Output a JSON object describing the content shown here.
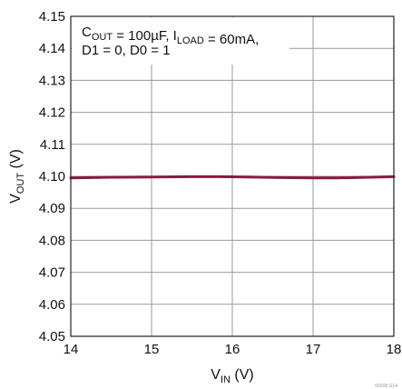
{
  "chart_data": {
    "type": "line",
    "xlabel": {
      "main": "V",
      "sub": "IN",
      "unit": " (V)"
    },
    "ylabel": {
      "main": "V",
      "sub": "OUT",
      "unit": " (V)"
    },
    "xlim": [
      14,
      18
    ],
    "ylim": [
      4.05,
      4.15
    ],
    "x_ticks": [
      "14",
      "15",
      "16",
      "17",
      "18"
    ],
    "y_ticks": [
      "4.05",
      "4.06",
      "4.07",
      "4.08",
      "4.09",
      "4.10",
      "4.11",
      "4.12",
      "4.13",
      "4.14",
      "4.15"
    ],
    "grid": true,
    "annotation": {
      "line1": [
        {
          "t": "C"
        },
        {
          "t": "OUT",
          "sub": true
        },
        {
          "t": " = 100µF, I"
        },
        {
          "t": "LOAD",
          "sub": true
        },
        {
          "t": " = 60mA,"
        }
      ],
      "line2": "D1 = 0, D0 = 1"
    },
    "series": [
      {
        "color": "#8b1a3a",
        "x": [
          14.0,
          14.5,
          15.0,
          15.5,
          15.8,
          16.2,
          16.6,
          17.0,
          17.3,
          17.7,
          18.0
        ],
        "y": [
          4.0995,
          4.0997,
          4.0998,
          4.0999,
          4.0999,
          4.0998,
          4.0996,
          4.0995,
          4.0995,
          4.0997,
          4.0999
        ]
      }
    ],
    "figure_id": "65908 G14"
  }
}
